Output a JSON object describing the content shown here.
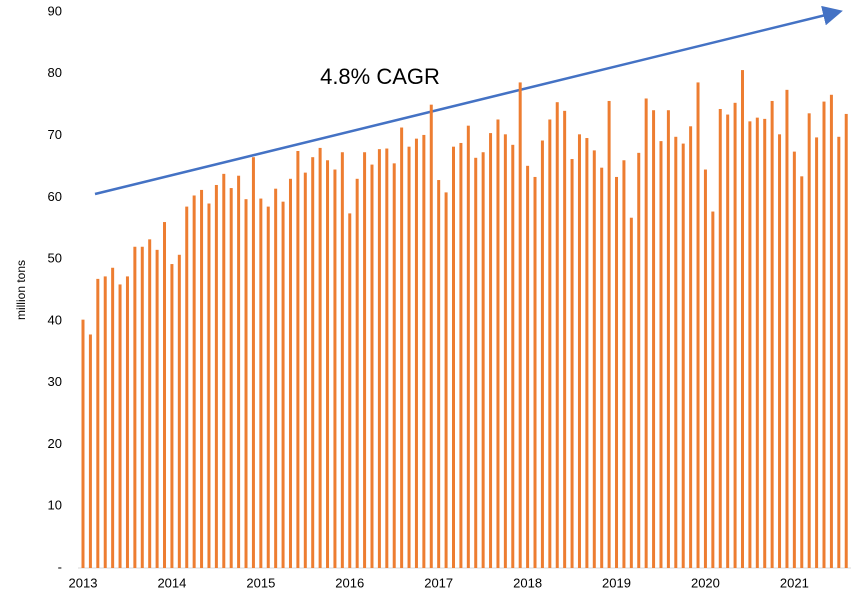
{
  "chart_data": {
    "type": "bar",
    "y_label": "million tons",
    "annotation": "4.8% CAGR",
    "color": "#ED7D31",
    "categories": [
      "2013",
      null,
      null,
      null,
      null,
      null,
      null,
      null,
      null,
      null,
      null,
      null,
      "2014",
      null,
      null,
      null,
      null,
      null,
      null,
      null,
      null,
      null,
      null,
      null,
      "2015",
      null,
      null,
      null,
      null,
      null,
      null,
      null,
      null,
      null,
      null,
      null,
      "2016",
      null,
      null,
      null,
      null,
      null,
      null,
      null,
      null,
      null,
      null,
      null,
      "2017",
      null,
      null,
      null,
      null,
      null,
      null,
      null,
      null,
      null,
      null,
      null,
      "2018",
      null,
      null,
      null,
      null,
      null,
      null,
      null,
      null,
      null,
      null,
      null,
      "2019",
      null,
      null,
      null,
      null,
      null,
      null,
      null,
      null,
      null,
      null,
      null,
      "2020",
      null,
      null,
      null,
      null,
      null,
      null,
      null,
      null,
      null,
      null,
      null,
      "2021",
      null,
      null,
      null,
      null,
      null,
      null,
      null
    ],
    "values": [
      40.2,
      37.8,
      46.8,
      47.2,
      48.6,
      45.9,
      47.2,
      52.0,
      52.0,
      53.2,
      51.5,
      56.0,
      49.2,
      50.7,
      58.5,
      60.3,
      61.2,
      59.0,
      62.0,
      63.8,
      61.5,
      63.5,
      59.7,
      66.5,
      59.8,
      58.5,
      61.4,
      59.3,
      63.0,
      67.5,
      64.0,
      66.5,
      68.0,
      66.0,
      64.5,
      67.3,
      57.4,
      63.0,
      67.3,
      65.3,
      67.8,
      67.9,
      65.5,
      71.3,
      68.2,
      69.5,
      70.1,
      75.0,
      62.8,
      60.8,
      68.2,
      68.8,
      71.6,
      66.4,
      67.3,
      70.4,
      72.6,
      70.2,
      68.5,
      78.6,
      65.1,
      63.3,
      69.2,
      72.6,
      75.4,
      74.0,
      66.2,
      70.2,
      69.6,
      67.6,
      64.8,
      75.6,
      63.3,
      66.0,
      56.7,
      67.2,
      76.0,
      74.1,
      69.1,
      74.1,
      69.8,
      68.7,
      71.5,
      78.6,
      64.5,
      57.7,
      74.3,
      73.4,
      75.3,
      80.6,
      72.3,
      72.9,
      72.7,
      75.6,
      70.2,
      77.4,
      67.4,
      63.4,
      73.6,
      69.7,
      75.5,
      76.6,
      69.8,
      73.5
    ],
    "ylim": [
      0,
      90
    ],
    "yticks": [
      {
        "value": 0,
        "label": "-"
      },
      10,
      20,
      30,
      40,
      50,
      60,
      70,
      80,
      90
    ]
  }
}
